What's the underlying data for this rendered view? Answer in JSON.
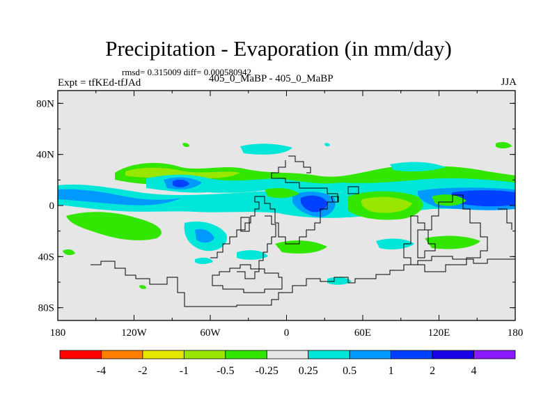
{
  "title": "Precipitation - Evaporation (in mm/day)",
  "stats": "rmsd= 0.315009 diff= 0.000580942",
  "left_label": "Expt = tfKEd-tfJAd",
  "center_label": "405_0_MaBP - 405_0_MaBP",
  "right_label": "JJA",
  "x_ticks": [
    "180",
    "120W",
    "60W",
    "0",
    "60E",
    "120E",
    "180"
  ],
  "y_ticks": [
    "80N",
    "40N",
    "0",
    "40S",
    "80S"
  ],
  "colorbar": {
    "colors": [
      "#ff0000",
      "#ff8000",
      "#e6e600",
      "#99e600",
      "#33e600",
      "#e6e6e6",
      "#00e6d9",
      "#0099ff",
      "#0040ff",
      "#1a00e6",
      "#8c1aff"
    ],
    "labels": [
      "-4",
      "-2",
      "-1",
      "-0.5",
      "-0.25",
      "0.25",
      "0.5",
      "1",
      "2",
      "4"
    ]
  }
}
